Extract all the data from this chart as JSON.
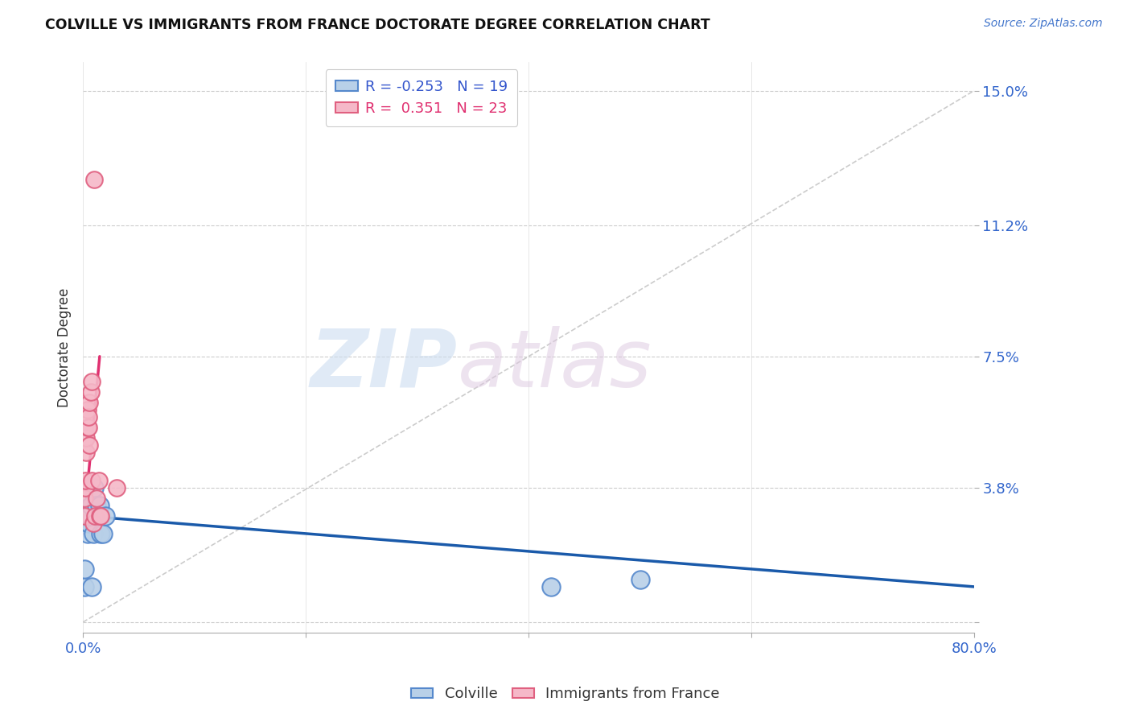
{
  "title": "COLVILLE VS IMMIGRANTS FROM FRANCE DOCTORATE DEGREE CORRELATION CHART",
  "source": "Source: ZipAtlas.com",
  "ylabel": "Doctorate Degree",
  "xlim": [
    0.0,
    0.8
  ],
  "ylim": [
    -0.003,
    0.158
  ],
  "yticks": [
    0.0,
    0.038,
    0.075,
    0.112,
    0.15
  ],
  "ytick_labels": [
    "",
    "3.8%",
    "7.5%",
    "11.2%",
    "15.0%"
  ],
  "xticks": [
    0.0,
    0.2,
    0.4,
    0.6,
    0.8
  ],
  "xtick_labels": [
    "0.0%",
    "",
    "",
    "",
    "80.0%"
  ],
  "legend_r1_text": "R = -0.253   N = 19",
  "legend_r2_text": "R =  0.351   N = 23",
  "colville_color": "#b8d0e8",
  "france_color": "#f5b8c8",
  "colville_edge": "#5588cc",
  "france_edge": "#e06080",
  "trend_blue": "#1a5aaa",
  "trend_pink": "#e03070",
  "ref_line_color": "#cccccc",
  "colville_scatter_x": [
    0.001,
    0.001,
    0.002,
    0.003,
    0.003,
    0.004,
    0.005,
    0.006,
    0.007,
    0.008,
    0.009,
    0.01,
    0.012,
    0.015,
    0.016,
    0.018,
    0.02,
    0.42,
    0.5
  ],
  "colville_scatter_y": [
    0.01,
    0.015,
    0.032,
    0.03,
    0.028,
    0.025,
    0.028,
    0.03,
    0.033,
    0.01,
    0.025,
    0.038,
    0.033,
    0.033,
    0.025,
    0.025,
    0.03,
    0.01,
    0.012
  ],
  "france_scatter_x": [
    0.001,
    0.001,
    0.002,
    0.002,
    0.003,
    0.003,
    0.004,
    0.004,
    0.005,
    0.005,
    0.006,
    0.006,
    0.007,
    0.008,
    0.008,
    0.009,
    0.01,
    0.011,
    0.012,
    0.014,
    0.015,
    0.016,
    0.03
  ],
  "france_scatter_y": [
    0.03,
    0.035,
    0.038,
    0.04,
    0.048,
    0.052,
    0.055,
    0.06,
    0.055,
    0.058,
    0.05,
    0.062,
    0.065,
    0.068,
    0.04,
    0.028,
    0.125,
    0.03,
    0.035,
    0.04,
    0.03,
    0.03,
    0.038
  ],
  "colville_trend_x": [
    0.0,
    0.8
  ],
  "colville_trend_y": [
    0.03,
    0.01
  ],
  "france_trend_x": [
    0.0,
    0.015
  ],
  "france_trend_y": [
    0.025,
    0.075
  ],
  "ref_line_x": [
    0.0,
    0.8
  ],
  "ref_line_y": [
    0.0,
    0.15
  ]
}
